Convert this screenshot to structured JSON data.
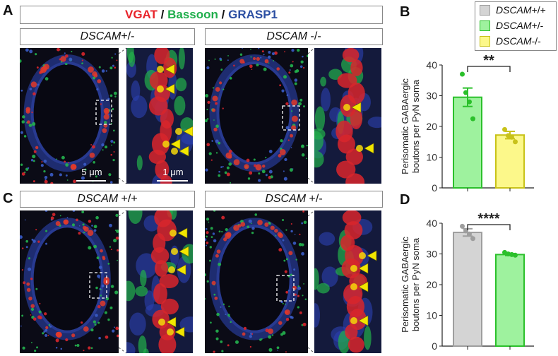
{
  "panels": {
    "A": "A",
    "B": "B",
    "C": "C",
    "D": "D"
  },
  "title": {
    "vgat": "VGAT",
    "sep1": " / ",
    "bassoon": "Bassoon",
    "sep2": " / ",
    "grasp1": "GRASP1"
  },
  "colors": {
    "vgat": "#e8232a",
    "bassoon": "#1fae4b",
    "grasp1": "#2b4ea2",
    "wt": "#d4d4d4",
    "het": "#9ef29e",
    "ko": "#fcf88a",
    "wt_edge": "#9e9e9e",
    "het_edge": "#2bc02b",
    "ko_edge": "#c8c21a",
    "arrow": "#f2e600"
  },
  "subpanels": {
    "A_left": {
      "gene": "DSCAM",
      "genotype": "+/-"
    },
    "A_right": {
      "gene": "DSCAM",
      "genotype": " -/-"
    },
    "C_left": {
      "gene": "DSCAM",
      "genotype": " +/+"
    },
    "C_right": {
      "gene": "DSCAM",
      "genotype": " +/-"
    }
  },
  "scalebars": {
    "overview": "5 μm",
    "zoom": "1 μm"
  },
  "legend": [
    {
      "gene": "DSCAM",
      "genotype": "+/+",
      "icon": "gray-square-icon"
    },
    {
      "gene": "DSCAM",
      "genotype": "+/-",
      "icon": "green-square-icon"
    },
    {
      "gene": "DSCAM",
      "genotype": "-/-",
      "icon": "yellow-square-icon"
    }
  ],
  "chart_data": [
    {
      "panel": "B",
      "type": "bar",
      "categories": [
        "DSCAM+/-",
        "DSCAM-/-"
      ],
      "values": [
        29.5,
        17.2
      ],
      "errors": [
        3.0,
        1.2
      ],
      "points": [
        [
          37,
          31,
          28,
          22.5
        ],
        [
          19,
          17,
          16.5,
          15
        ]
      ],
      "ylabel": [
        "Perisomatic GABAergic",
        "boutons per PyN soma"
      ],
      "ylim": [
        0,
        40
      ],
      "yticks": [
        "0",
        "10",
        "20",
        "30",
        "40"
      ],
      "significance": "**"
    },
    {
      "panel": "D",
      "type": "bar",
      "categories": [
        "DSCAM+/+",
        "DSCAM+/-"
      ],
      "values": [
        37,
        29.8
      ],
      "errors": [
        1.2,
        0.3
      ],
      "points": [
        [
          39,
          37.5,
          36.5,
          35
        ],
        [
          30.5,
          30,
          29.8,
          29.6
        ]
      ],
      "ylabel": [
        "Perisomatic GABAergic",
        "boutons per PyN soma"
      ],
      "ylim": [
        0,
        40
      ],
      "yticks": [
        "0",
        "10",
        "20",
        "30",
        "40"
      ],
      "significance": "****"
    }
  ]
}
